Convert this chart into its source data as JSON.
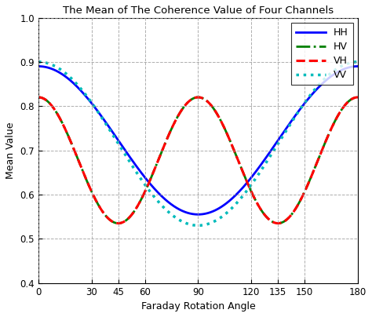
{
  "title": "The Mean of The Coherence Value of Four Channels",
  "xlabel": "Faraday Rotation Angle",
  "ylabel": "Mean Value",
  "xlim": [
    0,
    180
  ],
  "ylim": [
    0.4,
    1.0
  ],
  "xticks": [
    0,
    30,
    45,
    60,
    90,
    120,
    135,
    150,
    180
  ],
  "yticks": [
    0.4,
    0.5,
    0.6,
    0.7,
    0.8,
    0.9,
    1.0
  ],
  "background_color": "#ffffff",
  "grid_color": "#999999",
  "lines": [
    {
      "label": "HH",
      "color": "#0000ff",
      "linestyle": "solid",
      "linewidth": 2.0
    },
    {
      "label": "HV",
      "color": "#008000",
      "linestyle": "dashdot",
      "linewidth": 2.0
    },
    {
      "label": "VH",
      "color": "#ff0000",
      "linestyle": "dashed",
      "linewidth": 2.2
    },
    {
      "label": "VV",
      "color": "#00bbbb",
      "linestyle": "dotted",
      "linewidth": 2.5
    }
  ],
  "title_fontsize": 9.5,
  "label_fontsize": 9,
  "tick_fontsize": 8.5,
  "legend_fontsize": 9
}
